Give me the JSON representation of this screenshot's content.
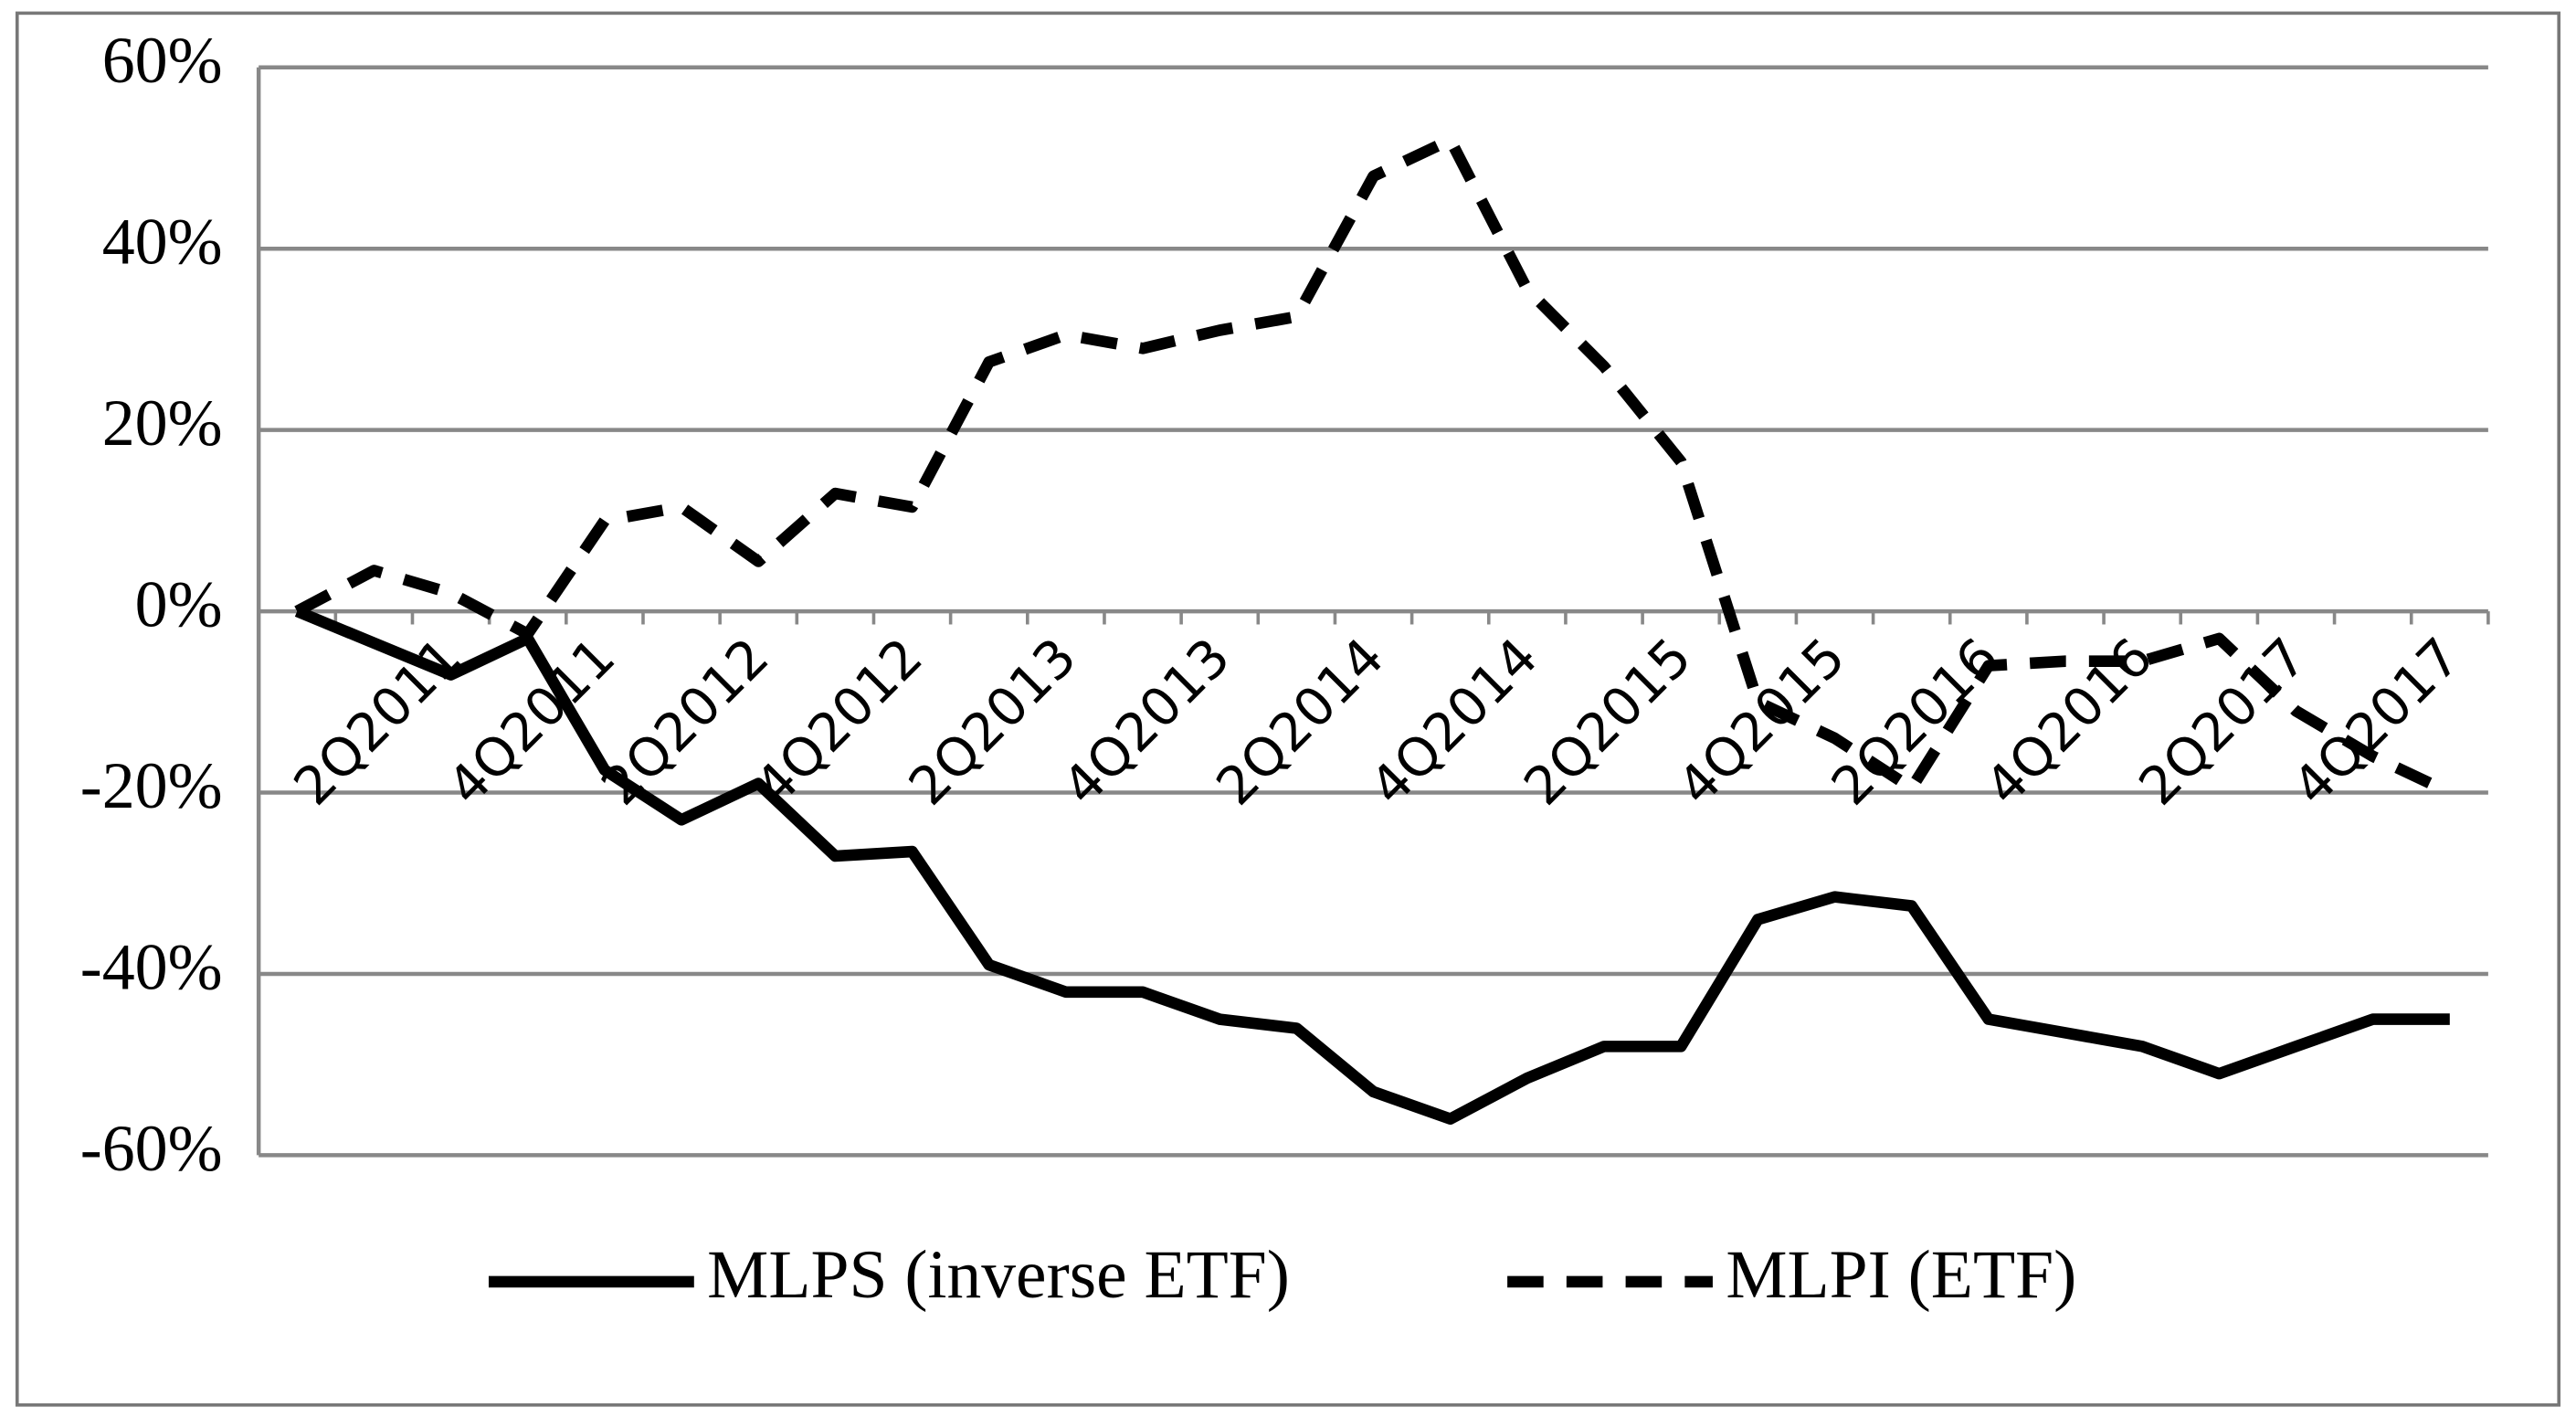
{
  "chart_data": {
    "type": "line",
    "categories": [
      null,
      null,
      "2Q2011",
      null,
      "4Q2011",
      null,
      "2Q2012",
      null,
      "4Q2012",
      null,
      "2Q2013",
      null,
      "4Q2013",
      null,
      "2Q2014",
      null,
      "4Q2014",
      null,
      "2Q2015",
      null,
      "4Q2015",
      null,
      "2Q2016",
      null,
      "4Q2016",
      null,
      "2Q2017",
      null,
      "4Q2017"
    ],
    "series": [
      {
        "name": "MLPS (inverse ETF)",
        "color": "#000000",
        "dash": false,
        "values": [
          0,
          -3.5,
          -7,
          -3,
          -17.5,
          -23,
          -19,
          -27,
          -26.5,
          -39,
          -42,
          -42,
          -45,
          -46,
          -53,
          -56,
          -51.5,
          -48,
          -48,
          -34,
          -31.5,
          -32.5,
          -45,
          -46.5,
          -48,
          -51,
          -48,
          -45,
          -45
        ]
      },
      {
        "name": "MLPI (ETF)",
        "color": "#000000",
        "dash": true,
        "values": [
          0,
          4.5,
          2,
          -2.5,
          10,
          11.5,
          5.5,
          13,
          11.5,
          27.5,
          30.5,
          29,
          31,
          32.5,
          48,
          52,
          35.5,
          27,
          16.5,
          -10,
          -14,
          -19.5,
          -6,
          -5.5,
          -5.5,
          -3,
          -11,
          -16,
          -20
        ]
      }
    ],
    "ylim": [
      -60,
      60
    ],
    "yticks": [
      {
        "value": -60,
        "label": "-60%"
      },
      {
        "value": -40,
        "label": "-40%"
      },
      {
        "value": -20,
        "label": "-20%"
      },
      {
        "value": 0,
        "label": "0%"
      },
      {
        "value": 20,
        "label": "20%"
      },
      {
        "value": 40,
        "label": "40%"
      },
      {
        "value": 60,
        "label": "60%"
      }
    ],
    "grid": true,
    "legend": "bottom"
  }
}
